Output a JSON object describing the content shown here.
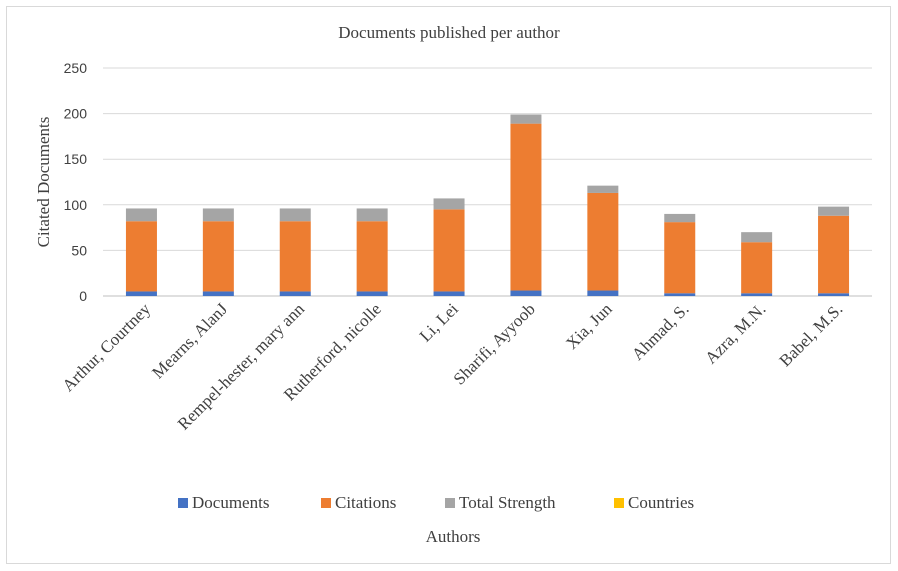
{
  "chart_data": {
    "type": "bar",
    "stacked": true,
    "title": "Documents published per author",
    "xlabel": "Authors",
    "ylabel": "Citated Documents",
    "ylim": [
      0,
      250
    ],
    "yticks": [
      0,
      50,
      100,
      150,
      200,
      250
    ],
    "grid": true,
    "legend_position": "bottom",
    "categories": [
      "Arthur, Courtney",
      "Mearns, AlanJ",
      "Rempel-hester, mary ann",
      "Rutherford, nicolle",
      "Li, Lei",
      "Sharifi, Ayyoob",
      "Xia, Jun",
      "Ahmad, S.",
      "Azra, M.N.",
      "Babel, M.S."
    ],
    "series": [
      {
        "name": "Documents",
        "color": "#4472c4",
        "values": [
          5,
          5,
          5,
          5,
          5,
          6,
          6,
          3,
          3,
          3
        ]
      },
      {
        "name": "Citations",
        "color": "#ed7d31",
        "values": [
          77,
          77,
          77,
          77,
          90,
          183,
          107,
          78,
          56,
          85
        ]
      },
      {
        "name": "Total Strength",
        "color": "#a5a5a5",
        "values": [
          14,
          14,
          14,
          14,
          12,
          10,
          8,
          9,
          11,
          10
        ]
      },
      {
        "name": "Countries",
        "color": "#ffc000",
        "values": [
          0,
          0,
          0,
          0,
          0,
          0,
          0,
          0,
          0,
          0
        ]
      }
    ]
  }
}
